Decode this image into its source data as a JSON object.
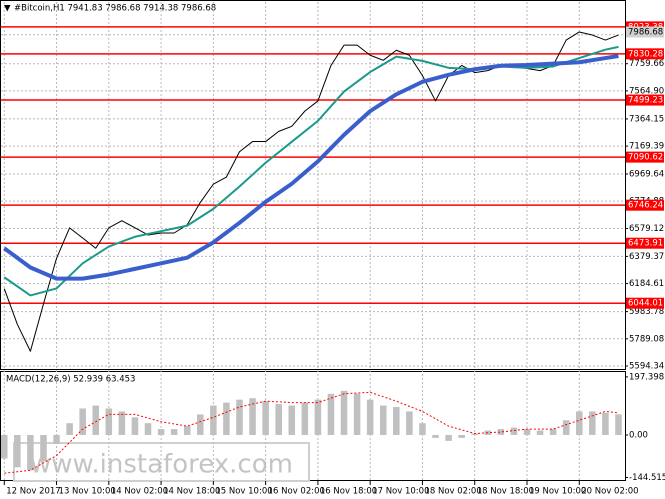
{
  "chart_data": [
    {
      "type": "line",
      "title": "#Bitcoin,H1  7941.83 7986.68 7914.38 7986.68",
      "x": [
        0,
        4,
        8,
        12,
        16,
        20,
        24,
        28,
        32,
        36,
        40,
        44,
        48,
        52,
        56,
        60,
        64,
        68,
        72,
        76,
        80,
        84,
        88,
        92,
        96,
        100,
        104,
        108,
        112,
        116,
        120,
        124,
        128,
        132,
        136,
        140,
        144,
        148,
        152,
        156,
        160,
        164,
        168,
        172,
        176,
        180,
        184,
        188
      ],
      "xlim": [
        -1,
        190
      ],
      "xticks": [
        {
          "value": 0,
          "label": "12 Nov 2017"
        },
        {
          "value": 16,
          "label": "13 Nov 10:00"
        },
        {
          "value": 32,
          "label": "14 Nov 02:00"
        },
        {
          "value": 48,
          "label": "14 Nov 18:00"
        },
        {
          "value": 64,
          "label": "15 Nov 10:00"
        },
        {
          "value": 80,
          "label": "16 Nov 02:00"
        },
        {
          "value": 96,
          "label": "16 Nov 18:00"
        },
        {
          "value": 112,
          "label": "17 Nov 10:00"
        },
        {
          "value": 128,
          "label": "18 Nov 02:00"
        },
        {
          "value": 144,
          "label": "18 Nov 18:00"
        },
        {
          "value": 160,
          "label": "19 Nov 10:00"
        },
        {
          "value": 176,
          "label": "20 Nov 02:00"
        }
      ],
      "ylim": [
        5580,
        8130
      ],
      "yticks": [
        7966.68,
        7759.66,
        {
          "value": 7564.9,
          "label": "7564.90"
        },
        7364.15,
        7169.39,
        6969.64,
        6774.88,
        6579.12,
        6379.37,
        6184.61,
        5983.78,
        5789.08,
        5594.34
      ],
      "grid": true,
      "series": [
        {
          "color": "#000000",
          "values": [
            6148,
            5893,
            5700,
            6039,
            6366,
            6584,
            6511,
            6438,
            6584,
            6635,
            6584,
            6533,
            6547,
            6547,
            6606,
            6766,
            6897,
            6948,
            7129,
            7202,
            7202,
            7275,
            7311,
            7420,
            7493,
            7747,
            7893,
            7893,
            7820,
            7784,
            7856,
            7820,
            7674,
            7493,
            7674,
            7747,
            7696,
            7710,
            7747,
            7747,
            7725,
            7710,
            7747,
            7929,
            7987,
            7965,
            7929,
            7965
          ]
        },
        {
          "color": "#1a9a8a",
          "x": [
            0,
            8,
            16,
            24,
            32,
            40,
            48,
            56,
            64,
            72,
            80,
            88,
            96,
            104,
            112,
            120,
            128,
            136,
            144,
            152,
            160,
            168,
            176,
            184,
            188
          ],
          "values": [
            6230,
            6100,
            6150,
            6330,
            6450,
            6520,
            6560,
            6600,
            6720,
            6880,
            7050,
            7200,
            7350,
            7560,
            7700,
            7810,
            7780,
            7730,
            7720,
            7740,
            7730,
            7740,
            7800,
            7860,
            7880
          ]
        },
        {
          "color": "#3a5fcd",
          "x": [
            0,
            8,
            16,
            24,
            32,
            40,
            48,
            56,
            64,
            72,
            80,
            88,
            96,
            104,
            112,
            120,
            128,
            136,
            144,
            152,
            160,
            168,
            176,
            184,
            188
          ],
          "values": [
            6438,
            6300,
            6220,
            6220,
            6250,
            6290,
            6330,
            6370,
            6480,
            6620,
            6770,
            6900,
            7060,
            7250,
            7420,
            7540,
            7630,
            7680,
            7720,
            7745,
            7750,
            7760,
            7770,
            7800,
            7815
          ]
        }
      ],
      "levels": [
        8023.38,
        7830.28,
        7499.23,
        7090.62,
        6746.24,
        6473.91,
        6044.01
      ],
      "level_color": "#ff0000",
      "last_price": 7986.68
    },
    {
      "type": "bar",
      "title": "MACD(12,26,9) 52.939 63.453",
      "x": [
        0,
        4,
        8,
        12,
        16,
        20,
        24,
        28,
        32,
        36,
        40,
        44,
        48,
        52,
        56,
        60,
        64,
        68,
        72,
        76,
        80,
        84,
        88,
        92,
        96,
        100,
        104,
        108,
        112,
        116,
        120,
        124,
        128,
        132,
        136,
        140,
        144,
        148,
        152,
        156,
        160,
        164,
        168,
        172,
        176,
        180,
        184,
        188
      ],
      "xlim": [
        -1,
        190
      ],
      "ylim": [
        -153,
        214
      ],
      "yticks": [
        197.398,
        {
          "value": 0,
          "label": "0.00"
        },
        -144.515
      ],
      "color": "#c0c0c0",
      "values": [
        -80,
        -110,
        -120,
        -90,
        -30,
        40,
        90,
        100,
        90,
        80,
        60,
        40,
        20,
        20,
        30,
        70,
        100,
        110,
        120,
        125,
        115,
        105,
        100,
        110,
        120,
        140,
        150,
        140,
        120,
        100,
        95,
        80,
        40,
        -10,
        -20,
        -10,
        5,
        15,
        20,
        25,
        20,
        15,
        20,
        50,
        80,
        80,
        75,
        70
      ],
      "signal": {
        "color": "#ff0000",
        "x": [
          0,
          8,
          16,
          24,
          32,
          40,
          48,
          56,
          64,
          72,
          80,
          88,
          96,
          104,
          112,
          120,
          128,
          136,
          144,
          152,
          160,
          168,
          176,
          184,
          188
        ],
        "values": [
          -130,
          -120,
          -70,
          20,
          70,
          70,
          45,
          30,
          60,
          95,
          115,
          110,
          110,
          140,
          145,
          115,
          80,
          30,
          5,
          10,
          20,
          20,
          50,
          80,
          75
        ]
      }
    }
  ],
  "watermark": "www.instaforex.com"
}
